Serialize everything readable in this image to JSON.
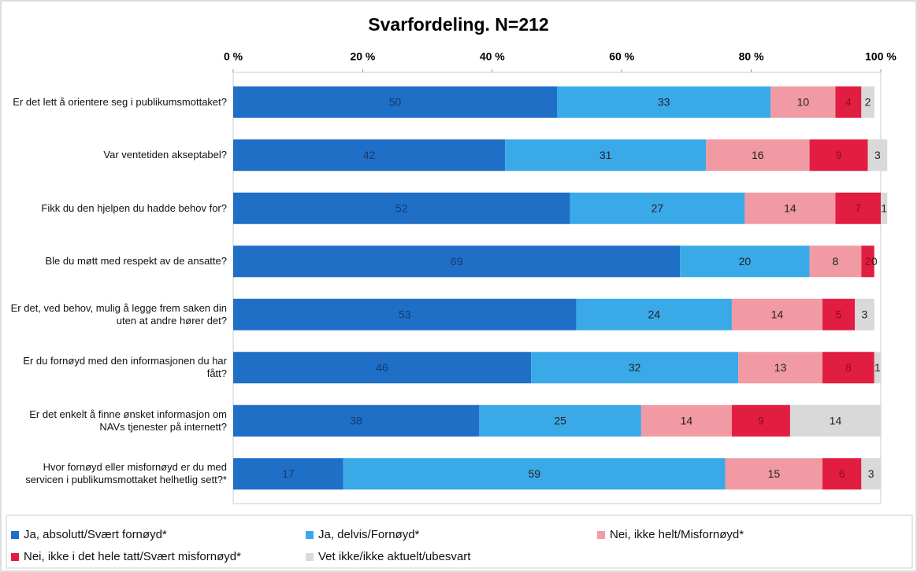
{
  "chart_data": {
    "type": "stacked_barh",
    "title": "Svarfordeling. N=212",
    "categories": [
      "Er det lett å orientere seg i publikumsmottaket?",
      "Var ventetiden akseptabel?",
      "Fikk du den hjelpen du hadde behov for?",
      "Ble du møtt med respekt av de ansatte?",
      "Er det, ved behov, mulig å legge frem saken din uten at andre hører det?",
      "Er du fornøyd med den informasjonen du har fått?",
      "Er det enkelt å finne ønsket informasjon om NAVs tjenester på internett?",
      "Hvor fornøyd eller misfornøyd er du med servicen i publikumsmottaket helhetlig sett?*"
    ],
    "series": [
      {
        "name": "Ja, absolutt/Svært fornøyd*",
        "color": "#1f6fc6",
        "values": [
          50,
          42,
          52,
          69,
          53,
          46,
          38,
          17
        ]
      },
      {
        "name": "Ja, delvis/Fornøyd*",
        "color": "#3aa9e8",
        "values": [
          33,
          31,
          27,
          20,
          24,
          32,
          25,
          59
        ]
      },
      {
        "name": "Nei, ikke helt/Misfornøyd*",
        "color": "#f19aa3",
        "values": [
          10,
          16,
          14,
          8,
          14,
          13,
          14,
          15
        ]
      },
      {
        "name": "Nei, ikke i det hele tatt/Svært misfornøyd*",
        "color": "#e21d42",
        "values": [
          4,
          9,
          7,
          2,
          5,
          8,
          9,
          6
        ]
      },
      {
        "name": "Vet ikke/ikke aktuelt/ubesvart",
        "color": "#d9d9d9",
        "values": [
          2,
          3,
          1,
          0,
          3,
          1,
          14,
          3
        ]
      }
    ],
    "xlim": [
      0,
      100
    ],
    "xticks": [
      {
        "value": 0,
        "label": "0 %"
      },
      {
        "value": 20,
        "label": "20 %"
      },
      {
        "value": 40,
        "label": "40 %"
      },
      {
        "value": 60,
        "label": "60 %"
      },
      {
        "value": 80,
        "label": "80 %"
      },
      {
        "value": 100,
        "label": "100 %"
      }
    ]
  }
}
